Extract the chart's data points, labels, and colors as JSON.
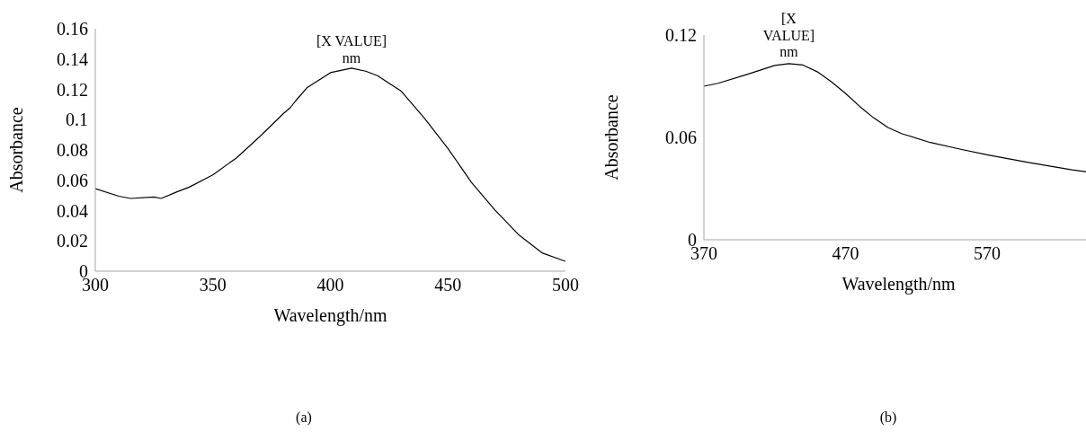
{
  "chart_data": [
    {
      "type": "line",
      "xlabel": "Wavelength/nm",
      "ylabel": "Absorbance",
      "xlim": [
        300,
        500
      ],
      "xticks": [
        300,
        350,
        400,
        450,
        500
      ],
      "ylim": [
        0,
        0.16
      ],
      "yticks": [
        0,
        0.02,
        0.04,
        0.06,
        0.08,
        0.1,
        0.12,
        0.14,
        0.16
      ],
      "x": [
        300,
        310,
        315,
        325,
        328,
        335,
        340,
        350,
        360,
        370,
        380,
        383,
        385,
        390,
        400,
        409,
        415,
        420,
        430,
        440,
        450,
        460,
        470,
        480,
        490,
        500
      ],
      "series": [
        {
          "color": "#000000",
          "values": [
            0.0545,
            0.0495,
            0.048,
            0.049,
            0.048,
            0.0525,
            0.0555,
            0.0636,
            0.0747,
            0.0889,
            0.104,
            0.108,
            0.112,
            0.121,
            0.131,
            0.134,
            0.132,
            0.129,
            0.119,
            0.101,
            0.081,
            0.0586,
            0.0404,
            0.0242,
            0.0121,
            0.0065
          ]
        }
      ],
      "annotations": [
        {
          "text": "[X VALUE] nm",
          "x": 409,
          "y": 0.134
        },
        "(a)"
      ]
    },
    {
      "type": "line",
      "xlabel": "Wavelength/nm",
      "ylabel": "Absorbance",
      "xlim": [
        370,
        645
      ],
      "xticks": [
        370,
        470,
        570
      ],
      "ylim": [
        0,
        0.12
      ],
      "yticks": [
        0,
        0.06,
        0.12
      ],
      "x": [
        370,
        380,
        400,
        420,
        430,
        440,
        450,
        460,
        470,
        480,
        490,
        500,
        510,
        530,
        550,
        570,
        600,
        630,
        645
      ],
      "series": [
        {
          "color": "#000000",
          "values": [
            0.09,
            0.0917,
            0.0968,
            0.1022,
            0.1032,
            0.1024,
            0.0985,
            0.0926,
            0.0858,
            0.0782,
            0.0714,
            0.0658,
            0.0621,
            0.057,
            0.0533,
            0.0498,
            0.0452,
            0.041,
            0.0393
          ]
        }
      ],
      "annotations": [
        {
          "text": "[X VALUE] nm",
          "x": 430,
          "y": 0.1032
        },
        "(b)"
      ]
    }
  ]
}
